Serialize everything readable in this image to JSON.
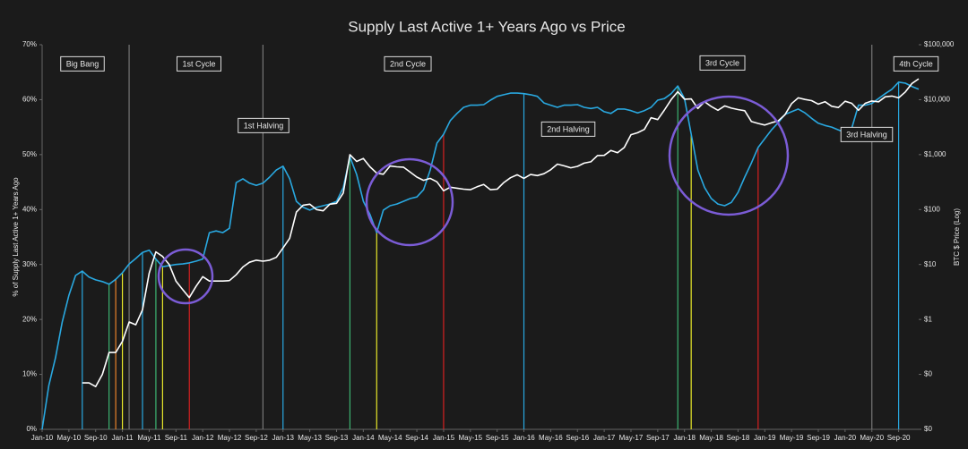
{
  "chart_data": {
    "type": "line",
    "title": "Supply Last Active 1+ Years Ago vs Price",
    "ylabel": "% of Supply Last Active 1+ Years Ago",
    "y2label": "BTC $ Price (Log)",
    "y2scale": "log",
    "xlim": [
      "2010-01",
      "2020-12"
    ],
    "ylim": [
      0,
      70
    ],
    "y2lim": [
      0.01,
      100000
    ],
    "yticks": [
      {
        "value": 0,
        "label": "0%"
      },
      {
        "value": 10,
        "label": "10%"
      },
      {
        "value": 20,
        "label": "20%"
      },
      {
        "value": 30,
        "label": "30%"
      },
      {
        "value": 40,
        "label": "40%"
      },
      {
        "value": 50,
        "label": "50%"
      },
      {
        "value": 60,
        "label": "60%"
      },
      {
        "value": 70,
        "label": "70%"
      }
    ],
    "y2ticks": [
      {
        "value": 0.01,
        "label": "$0"
      },
      {
        "value": 0.1,
        "label": "$0"
      },
      {
        "value": 1,
        "label": "$1"
      },
      {
        "value": 10,
        "label": "$10"
      },
      {
        "value": 100,
        "label": "$100"
      },
      {
        "value": 1000,
        "label": "$1,000"
      },
      {
        "value": 10000,
        "label": "$10,000"
      },
      {
        "value": 100000,
        "label": "$100,000"
      }
    ],
    "xticks": [
      {
        "value": "2010-01",
        "label": "Jan-10"
      },
      {
        "value": "2010-05",
        "label": "May-10"
      },
      {
        "value": "2010-09",
        "label": "Sep-10"
      },
      {
        "value": "2011-01",
        "label": "Jan-11"
      },
      {
        "value": "2011-05",
        "label": "May-11"
      },
      {
        "value": "2011-09",
        "label": "Sep-11"
      },
      {
        "value": "2012-01",
        "label": "Jan-12"
      },
      {
        "value": "2012-05",
        "label": "May-12"
      },
      {
        "value": "2012-09",
        "label": "Sep-12"
      },
      {
        "value": "2013-01",
        "label": "Jan-13"
      },
      {
        "value": "2013-05",
        "label": "May-13"
      },
      {
        "value": "2013-09",
        "label": "Sep-13"
      },
      {
        "value": "2014-01",
        "label": "Jan-14"
      },
      {
        "value": "2014-05",
        "label": "May-14"
      },
      {
        "value": "2014-09",
        "label": "Sep-14"
      },
      {
        "value": "2015-01",
        "label": "Jan-15"
      },
      {
        "value": "2015-05",
        "label": "May-15"
      },
      {
        "value": "2015-09",
        "label": "Sep-15"
      },
      {
        "value": "2016-01",
        "label": "Jan-16"
      },
      {
        "value": "2016-05",
        "label": "May-16"
      },
      {
        "value": "2016-09",
        "label": "Sep-16"
      },
      {
        "value": "2017-01",
        "label": "Jan-17"
      },
      {
        "value": "2017-05",
        "label": "May-17"
      },
      {
        "value": "2017-09",
        "label": "Sep-17"
      },
      {
        "value": "2018-01",
        "label": "Jan-18"
      },
      {
        "value": "2018-05",
        "label": "May-18"
      },
      {
        "value": "2018-09",
        "label": "Sep-18"
      },
      {
        "value": "2019-01",
        "label": "Jan-19"
      },
      {
        "value": "2019-05",
        "label": "May-19"
      },
      {
        "value": "2019-09",
        "label": "Sep-19"
      },
      {
        "value": "2020-01",
        "label": "Jan-20"
      },
      {
        "value": "2020-05",
        "label": "May-20"
      },
      {
        "value": "2020-09",
        "label": "Sep-20"
      }
    ],
    "x": [
      "2010-01",
      "2010-02",
      "2010-03",
      "2010-04",
      "2010-05",
      "2010-06",
      "2010-07",
      "2010-08",
      "2010-09",
      "2010-10",
      "2010-11",
      "2010-12",
      "2011-01",
      "2011-02",
      "2011-03",
      "2011-04",
      "2011-05",
      "2011-06",
      "2011-07",
      "2011-08",
      "2011-09",
      "2011-10",
      "2011-11",
      "2011-12",
      "2012-01",
      "2012-02",
      "2012-03",
      "2012-04",
      "2012-05",
      "2012-06",
      "2012-07",
      "2012-08",
      "2012-09",
      "2012-10",
      "2012-11",
      "2012-12",
      "2013-01",
      "2013-02",
      "2013-03",
      "2013-04",
      "2013-05",
      "2013-06",
      "2013-07",
      "2013-08",
      "2013-09",
      "2013-10",
      "2013-11",
      "2013-12",
      "2014-01",
      "2014-02",
      "2014-03",
      "2014-04",
      "2014-05",
      "2014-06",
      "2014-07",
      "2014-08",
      "2014-09",
      "2014-10",
      "2014-11",
      "2014-12",
      "2015-01",
      "2015-02",
      "2015-03",
      "2015-04",
      "2015-05",
      "2015-06",
      "2015-07",
      "2015-08",
      "2015-09",
      "2015-10",
      "2015-11",
      "2015-12",
      "2016-01",
      "2016-02",
      "2016-03",
      "2016-04",
      "2016-05",
      "2016-06",
      "2016-07",
      "2016-08",
      "2016-09",
      "2016-10",
      "2016-11",
      "2016-12",
      "2017-01",
      "2017-02",
      "2017-03",
      "2017-04",
      "2017-05",
      "2017-06",
      "2017-07",
      "2017-08",
      "2017-09",
      "2017-10",
      "2017-11",
      "2017-12",
      "2018-01",
      "2018-02",
      "2018-03",
      "2018-04",
      "2018-05",
      "2018-06",
      "2018-07",
      "2018-08",
      "2018-09",
      "2018-10",
      "2018-11",
      "2018-12",
      "2019-01",
      "2019-02",
      "2019-03",
      "2019-04",
      "2019-05",
      "2019-06",
      "2019-07",
      "2019-08",
      "2019-09",
      "2019-10",
      "2019-11",
      "2019-12",
      "2020-01",
      "2020-02",
      "2020-03",
      "2020-04",
      "2020-05",
      "2020-06",
      "2020-07",
      "2020-08",
      "2020-09",
      "2020-10",
      "2020-11",
      "2020-12"
    ],
    "series": [
      {
        "color": "#29a8e0",
        "axis": "y",
        "values": [
          0,
          8,
          13,
          19.5,
          24.4,
          28,
          28.8,
          27.7,
          27.2,
          26.9,
          26.4,
          27.3,
          28.5,
          30.1,
          31.1,
          32.2,
          32.6,
          31,
          29.6,
          29.8,
          30,
          30.1,
          30.3,
          30.6,
          31,
          35.8,
          36.1,
          35.8,
          36.6,
          44.9,
          45.6,
          44.8,
          44.4,
          44.8,
          45.9,
          47.2,
          47.9,
          45.6,
          41.5,
          40.4,
          39.9,
          40.4,
          40.7,
          41,
          41.5,
          44,
          49.6,
          46.4,
          41.5,
          39.1,
          35.8,
          39.9,
          40.7,
          41,
          41.5,
          42,
          42.3,
          43.6,
          47.2,
          52.1,
          53.7,
          56.2,
          57.5,
          58.6,
          59,
          59,
          59.1,
          59.9,
          60.6,
          60.9,
          61.2,
          61.2,
          61.1,
          60.9,
          60.6,
          59.4,
          59,
          58.6,
          59,
          59,
          59.1,
          58.6,
          58.4,
          58.6,
          57.8,
          57.5,
          58.3,
          58.3,
          58,
          57.6,
          58,
          58.6,
          59.9,
          60.2,
          61.1,
          62.5,
          60.2,
          53.7,
          47.2,
          44,
          42,
          41,
          40.7,
          41.3,
          43.1,
          45.9,
          48.5,
          51.3,
          52.9,
          54.5,
          55.8,
          57.3,
          57.8,
          58.3,
          57.6,
          56.6,
          55.7,
          55.3,
          55,
          54.5,
          54,
          54.8,
          59,
          59,
          59.3,
          60.2,
          61.1,
          61.9,
          63.2,
          63,
          62.4,
          61.9
        ]
      },
      {
        "color": "#ffffff",
        "axis": "y2",
        "values": [
          null,
          null,
          null,
          null,
          null,
          null,
          0.07,
          0.07,
          0.06,
          0.1,
          0.25,
          0.25,
          0.4,
          0.9,
          0.8,
          1.5,
          7,
          17,
          14,
          10,
          5,
          3.5,
          2.5,
          4,
          6,
          5,
          5,
          5,
          5.1,
          6.5,
          9,
          11,
          12,
          11.5,
          12,
          13.5,
          20,
          30,
          90,
          120,
          125,
          100,
          95,
          125,
          130,
          200,
          1000,
          750,
          850,
          600,
          460,
          440,
          620,
          600,
          590,
          480,
          390,
          340,
          370,
          320,
          220,
          255,
          245,
          235,
          230,
          260,
          285,
          230,
          235,
          310,
          380,
          430,
          370,
          435,
          415,
          450,
          530,
          670,
          625,
          575,
          610,
          700,
          740,
          960,
          970,
          1190,
          1080,
          1350,
          2300,
          2500,
          2870,
          4700,
          4340,
          6470,
          10000,
          14000,
          10200,
          10300,
          6900,
          9200,
          7500,
          6400,
          7700,
          7000,
          6600,
          6300,
          4000,
          3700,
          3450,
          3800,
          4100,
          5300,
          8500,
          10800,
          10100,
          9600,
          8300,
          9200,
          7600,
          7200,
          9350,
          8600,
          6400,
          8600,
          9450,
          9150,
          11300,
          11650,
          10800,
          13800,
          19700,
          24000
        ]
      }
    ],
    "event_lines": [
      {
        "x": "2010-07",
        "color": "#29a8e0"
      },
      {
        "x": "2010-11",
        "color": "#3cb371"
      },
      {
        "x": "2010-12",
        "color": "#e8822a"
      },
      {
        "x": "2011-01",
        "color": "#e8e82a"
      },
      {
        "x": "2011-02",
        "color": "#777777"
      },
      {
        "x": "2011-04",
        "color": "#29a8e0"
      },
      {
        "x": "2011-06",
        "color": "#3cb371"
      },
      {
        "x": "2011-07",
        "color": "#e8e82a"
      },
      {
        "x": "2011-11",
        "color": "#d62020"
      },
      {
        "x": "2012-10",
        "color": "#777777"
      },
      {
        "x": "2013-01",
        "color": "#29a8e0"
      },
      {
        "x": "2013-11",
        "color": "#3cb371"
      },
      {
        "x": "2014-03",
        "color": "#e8e82a"
      },
      {
        "x": "2015-01",
        "color": "#d62020"
      },
      {
        "x": "2016-01",
        "color": "#29a8e0"
      },
      {
        "x": "2017-12",
        "color": "#3cb371"
      },
      {
        "x": "2018-02",
        "color": "#e8e82a"
      },
      {
        "x": "2018-12",
        "color": "#d62020"
      },
      {
        "x": "2020-05",
        "color": "#777777"
      },
      {
        "x": "2020-09",
        "color": "#29a8e0"
      }
    ],
    "annotations": [
      "Big Bang",
      "1st Cycle",
      "1st Halving",
      "2nd Cycle",
      "2nd Halving",
      "3rd Cycle",
      "3rd Halving",
      "4th Cycle"
    ]
  }
}
